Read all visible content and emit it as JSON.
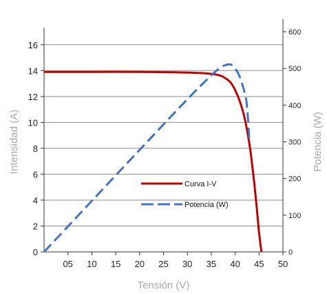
{
  "chart_data": {
    "type": "line",
    "xlabel": "Tensión (V)",
    "ylabel_left": "Intensidad (A)",
    "ylabel_right": "Potencia (W)",
    "x_tick_labels": [
      "05",
      "10",
      "15",
      "20",
      "25",
      "30",
      "35",
      "40",
      "45",
      "50"
    ],
    "x_ticks": [
      5,
      10,
      15,
      20,
      25,
      30,
      35,
      40,
      45,
      50
    ],
    "y_left_ticks": [
      0,
      2,
      4,
      6,
      8,
      10,
      12,
      14,
      16
    ],
    "y_right_ticks": [
      0,
      100,
      200,
      300,
      400,
      500,
      600
    ],
    "xlim": [
      0,
      50
    ],
    "ylim_left": [
      0,
      17
    ],
    "ylim_right": [
      0,
      600
    ],
    "grid": "horizontal",
    "legend_position": "center-right",
    "series": [
      {
        "name": "Curva I-V",
        "axis": "left",
        "color": "#c00000",
        "style": "solid",
        "x": [
          0,
          10,
          20,
          30,
          35,
          37,
          38,
          39,
          40,
          41,
          42,
          43,
          43.5,
          44,
          44.5,
          45,
          45.5
        ],
        "y": [
          13.9,
          13.9,
          13.9,
          13.85,
          13.75,
          13.6,
          13.4,
          13.1,
          12.5,
          11.6,
          10.3,
          8.3,
          6.9,
          5.3,
          3.5,
          1.5,
          0
        ]
      },
      {
        "name": "Potencia (W)",
        "axis": "right",
        "color": "#4472c4",
        "style": "dashed",
        "x": [
          0,
          10,
          20,
          30,
          35,
          37,
          38,
          39,
          40,
          41,
          42,
          42.5,
          43
        ],
        "y": [
          0,
          139,
          278,
          416,
          481,
          503,
          509,
          511,
          500,
          476,
          433,
          395,
          300
        ]
      }
    ]
  }
}
